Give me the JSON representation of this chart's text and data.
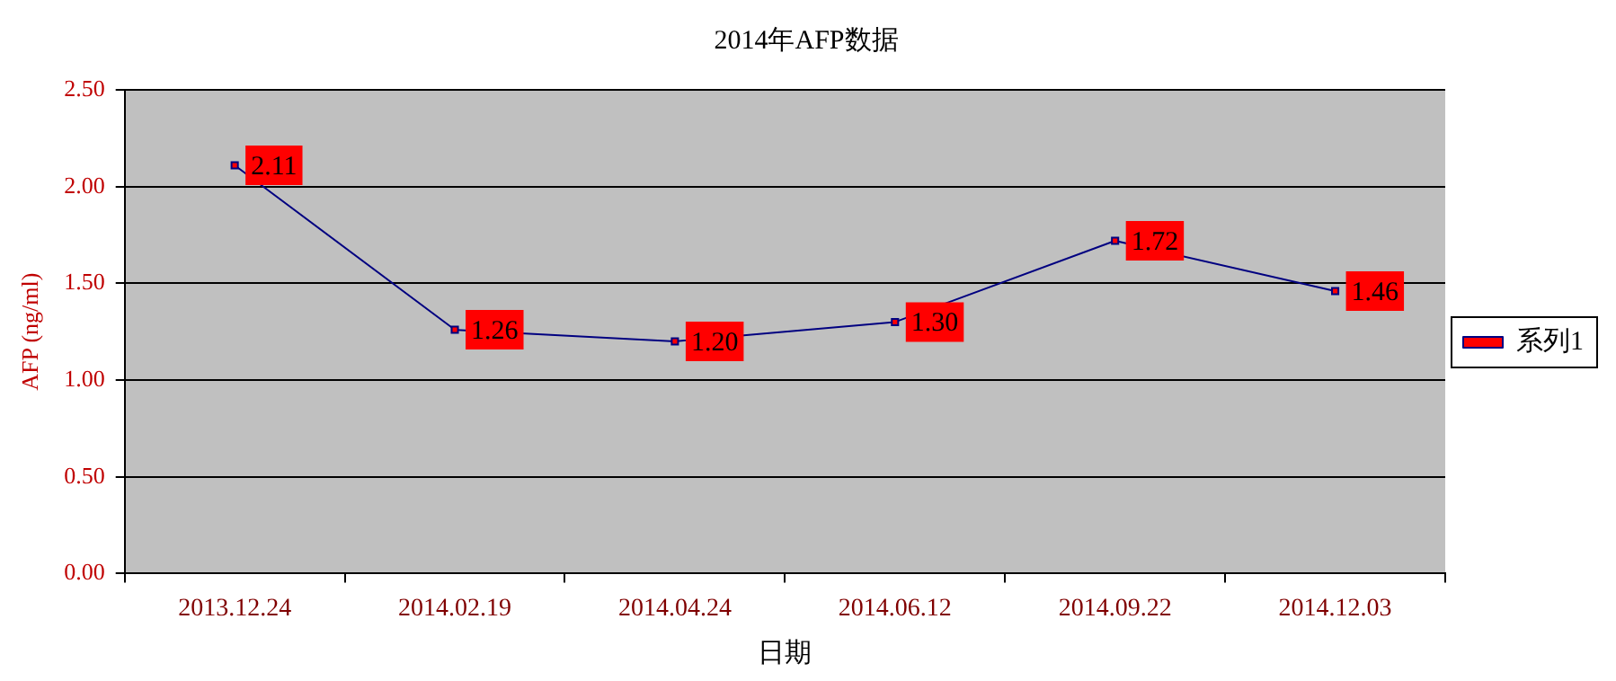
{
  "chart_data": {
    "type": "line",
    "title": "2014年AFP数据",
    "xlabel": "日期",
    "ylabel": "AFP (ng/ml)",
    "categories": [
      "2013.12.24",
      "2014.02.19",
      "2014.04.24",
      "2014.06.12",
      "2014.09.22",
      "2014.12.03"
    ],
    "series": [
      {
        "name": "系列1",
        "color": "#000080",
        "values": [
          2.11,
          1.26,
          1.2,
          1.3,
          1.72,
          1.46
        ],
        "value_labels": [
          "2.11",
          "1.26",
          "1.20",
          "1.30",
          "1.72",
          "1.46"
        ]
      }
    ],
    "ylim": [
      0,
      2.5
    ],
    "yticks": [
      {
        "value": 0,
        "label": "0.00"
      },
      {
        "value": 0.5,
        "label": "0.50"
      },
      {
        "value": 1,
        "label": "1.00"
      },
      {
        "value": 1.5,
        "label": "1.50"
      },
      {
        "value": 2,
        "label": "2.00"
      },
      {
        "value": 2.5,
        "label": "2.50"
      }
    ],
    "grid": "y",
    "legend": "right",
    "marker": "square",
    "line_style": "solid"
  }
}
